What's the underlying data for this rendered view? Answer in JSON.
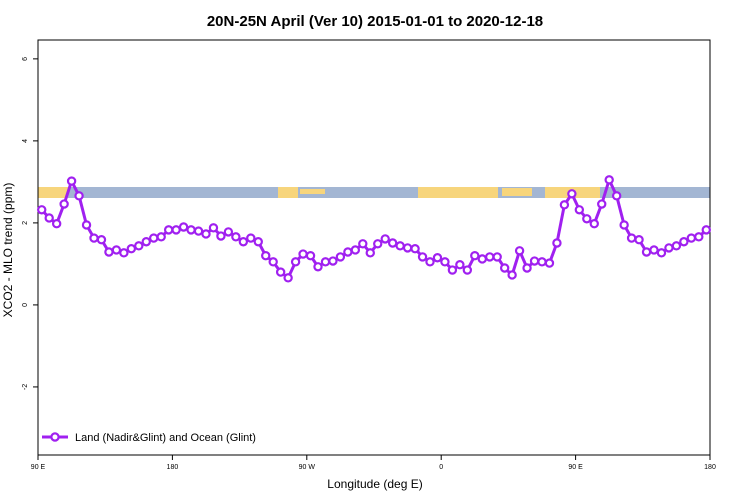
{
  "chart_data": {
    "type": "line",
    "title": "20N-25N April (Ver 10)   2015-01-01 to 2020-12-18",
    "x_label": "Longitude (deg E)",
    "y_label": "XCO2 - MLO trend (ppm)",
    "x": [
      92.5,
      97.5,
      102.5,
      107.5,
      112.5,
      117.5,
      122.5,
      127.5,
      132.5,
      137.5,
      142.5,
      147.5,
      152.5,
      157.5,
      162.5,
      167.5,
      172.5,
      177.5,
      182.5,
      187.5,
      192.5,
      197.5,
      202.5,
      207.5,
      212.5,
      217.5,
      222.5,
      227.5,
      232.5,
      237.5,
      242.5,
      247.5,
      252.5,
      257.5,
      262.5,
      267.5,
      272.5,
      277.5,
      282.5,
      287.5,
      292.5,
      297.5,
      302.5,
      307.5,
      312.5,
      317.5,
      322.5,
      327.5,
      332.5,
      337.5,
      342.5,
      347.5,
      352.5,
      357.5,
      362.5,
      367.5,
      372.5,
      377.5,
      382.5,
      387.5,
      392.5,
      397.5,
      402.5,
      407.5,
      412.5,
      417.5,
      422.5,
      427.5,
      432.5,
      437.5,
      442.5,
      447.5,
      452.5,
      457.5,
      462.5,
      467.5,
      472.5,
      477.5,
      482.5,
      487.5,
      492.5,
      497.5,
      502.5,
      507.5,
      512.5,
      517.5,
      522.5,
      527.5,
      532.5,
      537.5
    ],
    "series": [
      {
        "name": "Land (Nadir&Glint) and Ocean (Glint)",
        "color": "#a020f0",
        "values": [
          2.32,
          2.12,
          1.98,
          2.46,
          3.02,
          2.66,
          1.95,
          1.63,
          1.59,
          1.29,
          1.34,
          1.27,
          1.37,
          1.44,
          1.54,
          1.63,
          1.66,
          1.83,
          1.83,
          1.9,
          1.83,
          1.8,
          1.73,
          1.88,
          1.68,
          1.78,
          1.66,
          1.54,
          1.63,
          1.54,
          1.2,
          1.05,
          0.8,
          0.66,
          1.05,
          1.24,
          1.2,
          0.93,
          1.05,
          1.07,
          1.17,
          1.29,
          1.34,
          1.49,
          1.27,
          1.49,
          1.61,
          1.51,
          1.44,
          1.39,
          1.37,
          1.17,
          1.05,
          1.15,
          1.05,
          0.85,
          0.98,
          0.85,
          1.2,
          1.12,
          1.17,
          1.17,
          0.9,
          0.73,
          1.32,
          0.9,
          1.07,
          1.05,
          1.02,
          1.51,
          2.44,
          2.71,
          2.32,
          2.1,
          1.98,
          2.46,
          3.05,
          2.66,
          1.95,
          1.63,
          1.59,
          1.29,
          1.34,
          1.27,
          1.39,
          1.44,
          1.54,
          1.63,
          1.66,
          1.83
        ]
      }
    ],
    "xlim": [
      90,
      540
    ],
    "xticks": [
      {
        "value": 90,
        "label": "90 E"
      },
      180,
      {
        "value": 270,
        "label": "90 W"
      },
      {
        "value": 360,
        "label": "0"
      },
      {
        "value": 450,
        "label": "90 E"
      },
      {
        "value": 540,
        "label": "180"
      }
    ],
    "ylim": [
      -3.66,
      6.46
    ],
    "yticks": [
      -2,
      0,
      2,
      4,
      6
    ],
    "legend": "bottom-left"
  }
}
